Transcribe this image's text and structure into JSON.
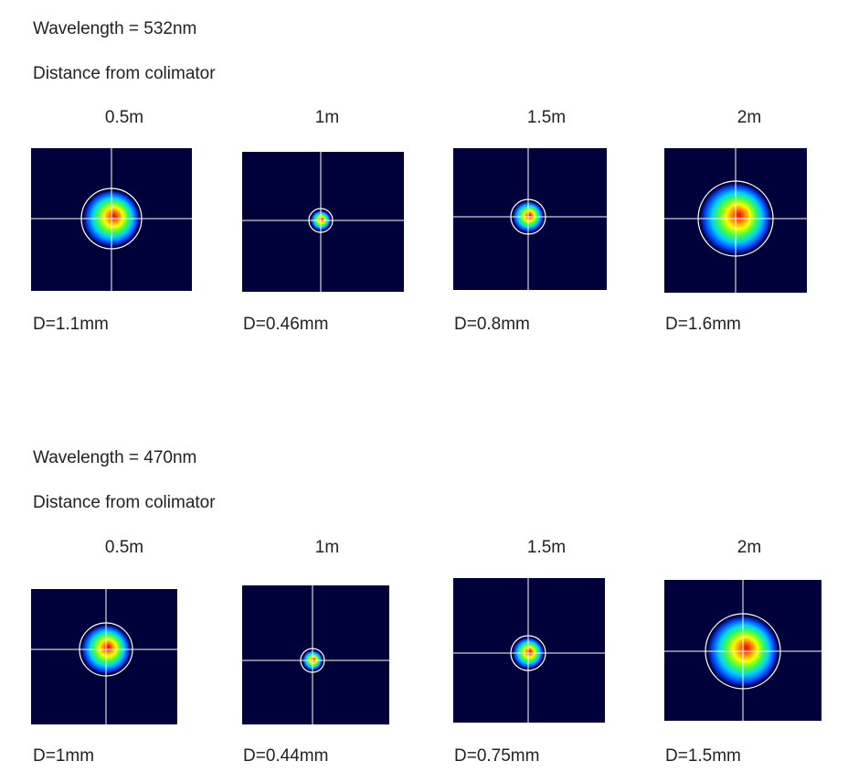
{
  "sections": [
    {
      "wavelength_label": "Wavelength = 532nm",
      "distance_label": "Distance from colimator",
      "measurements": [
        {
          "distance": "0.5m",
          "diameter": "D=1.1mm",
          "diameter_mm": 1.1
        },
        {
          "distance": "1m",
          "diameter": "D=0.46mm",
          "diameter_mm": 0.46
        },
        {
          "distance": "1.5m",
          "diameter": "D=0.8mm",
          "diameter_mm": 0.8
        },
        {
          "distance": "2m",
          "diameter": "D=1.6mm",
          "diameter_mm": 1.6
        }
      ]
    },
    {
      "wavelength_label": "Wavelength = 470nm",
      "distance_label": "Distance from colimator",
      "measurements": [
        {
          "distance": "0.5m",
          "diameter": "D=1mm",
          "diameter_mm": 1.0
        },
        {
          "distance": "1m",
          "diameter": "D=0.44mm",
          "diameter_mm": 0.44
        },
        {
          "distance": "1.5m",
          "diameter": "D=0.75mm",
          "diameter_mm": 0.75
        },
        {
          "distance": "2m",
          "diameter": "D=1.5mm",
          "diameter_mm": 1.5
        }
      ]
    }
  ],
  "colors": {
    "background": "#00003a",
    "crosshair": "#ffffff",
    "beam_gradient": [
      "#ff0000",
      "#ff8000",
      "#ffff00",
      "#40ff40",
      "#00d0ff",
      "#0040ff",
      "#00003a"
    ]
  }
}
